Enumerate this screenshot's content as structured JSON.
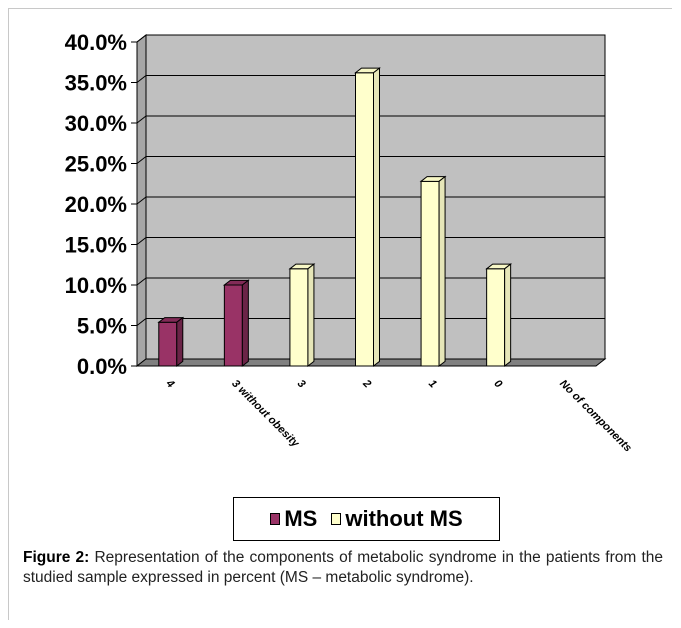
{
  "chart_data": {
    "type": "bar",
    "categories": [
      "4",
      "3 without obesity",
      "3",
      "2",
      "1",
      "0",
      "No of components"
    ],
    "series": [
      {
        "name": "MS",
        "values": [
          5.4,
          10.0,
          null,
          null,
          null,
          null,
          null
        ],
        "color": "#993366"
      },
      {
        "name": "without MS",
        "values": [
          null,
          null,
          12.0,
          36.2,
          22.8,
          12.0,
          null
        ],
        "color": "#ffffcc"
      }
    ],
    "ylim": [
      0,
      40
    ],
    "yticks": [
      "0.0%",
      "5.0%",
      "10.0%",
      "15.0%",
      "20.0%",
      "25.0%",
      "30.0%",
      "35.0%",
      "40.0%"
    ],
    "grid": true,
    "legend_position": "bottom",
    "colors": {
      "plot_background": "#c0c0c0",
      "wall_side": "#a6a6a6",
      "floor": "#808080",
      "gridline": "#000000"
    }
  },
  "legend": {
    "items": [
      {
        "label": "MS",
        "color": "#993366"
      },
      {
        "label": "without MS",
        "color": "#ffffcc"
      }
    ]
  },
  "caption": {
    "label": "Figure 2:",
    "text": " Representation of the components of metabolic syndrome in the patients from the studied sample expressed in percent (MS – metabolic syndrome)."
  }
}
